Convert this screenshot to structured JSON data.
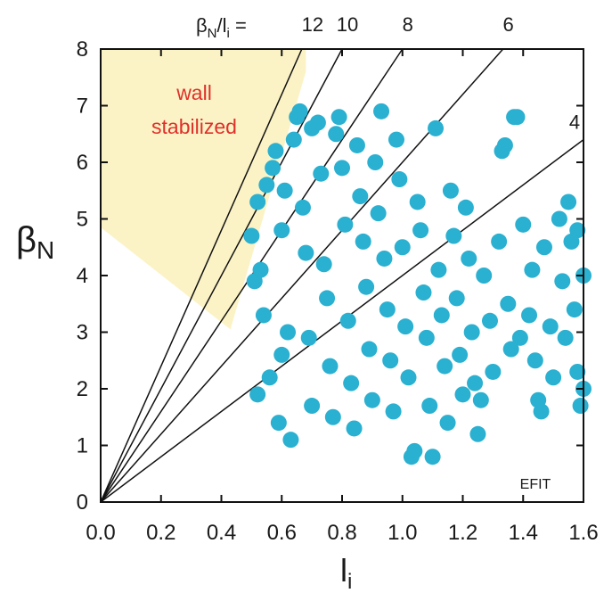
{
  "chart_data": {
    "type": "scatter",
    "xlabel": "l",
    "xlabel_sub": "i",
    "ylabel": "β",
    "ylabel_sub": "N",
    "xlim": [
      0.0,
      1.6
    ],
    "ylim": [
      0,
      8
    ],
    "xticks": [
      "0.0",
      "0.2",
      "0.4",
      "0.6",
      "0.8",
      "1.0",
      "1.2",
      "1.4",
      "1.6"
    ],
    "yticks": [
      "0",
      "1",
      "2",
      "3",
      "4",
      "5",
      "6",
      "7",
      "8"
    ],
    "ratio_lines": {
      "prefix": "β",
      "prefix_sub": "N",
      "middle": "/l",
      "middle_sub": "i",
      "equals": " = ",
      "values": [
        12,
        10,
        8,
        6,
        4
      ]
    },
    "region": {
      "label_line1": "wall",
      "label_line2": "stabilized",
      "polygon": [
        [
          0.0,
          8.0
        ],
        [
          0.68,
          8.0
        ],
        [
          0.68,
          7.6
        ],
        [
          0.43,
          3.05
        ],
        [
          0.0,
          4.85
        ]
      ]
    },
    "annotation": "EFIT",
    "series": [
      {
        "color": "#2ab0d0",
        "points": [
          [
            0.5,
            4.7
          ],
          [
            0.52,
            5.3
          ],
          [
            0.51,
            3.9
          ],
          [
            0.53,
            4.1
          ],
          [
            0.55,
            5.6
          ],
          [
            0.54,
            3.3
          ],
          [
            0.52,
            1.9
          ],
          [
            0.56,
            2.2
          ],
          [
            0.57,
            5.9
          ],
          [
            0.58,
            6.2
          ],
          [
            0.6,
            4.8
          ],
          [
            0.61,
            5.5
          ],
          [
            0.62,
            3.0
          ],
          [
            0.6,
            2.6
          ],
          [
            0.59,
            1.4
          ],
          [
            0.63,
            1.1
          ],
          [
            0.64,
            6.4
          ],
          [
            0.65,
            6.8
          ],
          [
            0.66,
            6.9
          ],
          [
            0.67,
            5.2
          ],
          [
            0.68,
            4.4
          ],
          [
            0.69,
            2.9
          ],
          [
            0.7,
            1.7
          ],
          [
            0.7,
            6.6
          ],
          [
            0.72,
            6.7
          ],
          [
            0.73,
            5.8
          ],
          [
            0.74,
            4.2
          ],
          [
            0.75,
            3.6
          ],
          [
            0.76,
            2.4
          ],
          [
            0.77,
            1.5
          ],
          [
            0.78,
            6.5
          ],
          [
            0.79,
            6.8
          ],
          [
            0.8,
            5.9
          ],
          [
            0.81,
            4.9
          ],
          [
            0.82,
            3.2
          ],
          [
            0.83,
            2.1
          ],
          [
            0.84,
            1.3
          ],
          [
            0.85,
            6.3
          ],
          [
            0.86,
            5.4
          ],
          [
            0.87,
            4.6
          ],
          [
            0.88,
            3.8
          ],
          [
            0.89,
            2.7
          ],
          [
            0.9,
            1.8
          ],
          [
            0.91,
            6.0
          ],
          [
            0.92,
            5.1
          ],
          [
            0.93,
            6.9
          ],
          [
            0.94,
            4.3
          ],
          [
            0.95,
            3.4
          ],
          [
            0.96,
            2.5
          ],
          [
            0.97,
            1.6
          ],
          [
            0.98,
            6.4
          ],
          [
            0.99,
            5.7
          ],
          [
            1.0,
            4.5
          ],
          [
            1.01,
            3.1
          ],
          [
            1.02,
            2.2
          ],
          [
            1.03,
            0.8
          ],
          [
            1.04,
            0.9
          ],
          [
            1.05,
            5.3
          ],
          [
            1.06,
            4.8
          ],
          [
            1.07,
            3.7
          ],
          [
            1.08,
            2.9
          ],
          [
            1.09,
            1.7
          ],
          [
            1.1,
            0.8
          ],
          [
            1.11,
            6.6
          ],
          [
            1.12,
            4.1
          ],
          [
            1.13,
            3.3
          ],
          [
            1.14,
            2.4
          ],
          [
            1.15,
            1.4
          ],
          [
            1.16,
            5.5
          ],
          [
            1.17,
            4.7
          ],
          [
            1.18,
            3.6
          ],
          [
            1.19,
            2.6
          ],
          [
            1.2,
            1.9
          ],
          [
            1.21,
            5.2
          ],
          [
            1.22,
            4.3
          ],
          [
            1.23,
            3.0
          ],
          [
            1.24,
            2.1
          ],
          [
            1.25,
            1.2
          ],
          [
            1.27,
            4.0
          ],
          [
            1.29,
            3.2
          ],
          [
            1.3,
            2.3
          ],
          [
            1.32,
            4.6
          ],
          [
            1.33,
            6.2
          ],
          [
            1.34,
            6.3
          ],
          [
            1.35,
            3.5
          ],
          [
            1.36,
            2.7
          ],
          [
            1.37,
            6.8
          ],
          [
            1.38,
            6.8
          ],
          [
            1.4,
            4.9
          ],
          [
            1.42,
            3.3
          ],
          [
            1.44,
            2.5
          ],
          [
            1.45,
            1.8
          ],
          [
            1.47,
            4.5
          ],
          [
            1.49,
            3.1
          ],
          [
            1.5,
            2.2
          ],
          [
            1.52,
            5.0
          ],
          [
            1.53,
            3.9
          ],
          [
            1.54,
            2.9
          ],
          [
            1.55,
            5.3
          ],
          [
            1.56,
            4.6
          ],
          [
            1.57,
            3.4
          ],
          [
            1.58,
            2.3
          ],
          [
            1.59,
            1.7
          ],
          [
            1.6,
            4.0
          ],
          [
            1.6,
            2.0
          ],
          [
            1.58,
            4.8
          ],
          [
            1.46,
            1.6
          ],
          [
            1.43,
            4.1
          ],
          [
            1.39,
            2.9
          ],
          [
            1.26,
            1.8
          ]
        ]
      }
    ]
  }
}
